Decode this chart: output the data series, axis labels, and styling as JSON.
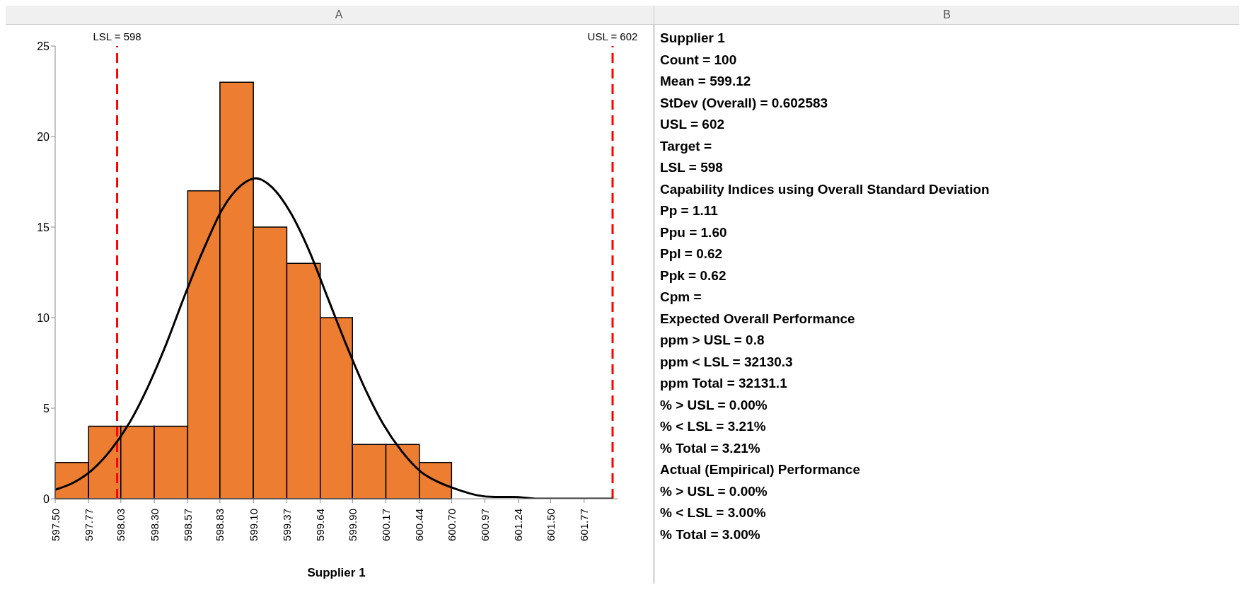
{
  "chart_data": {
    "type": "histogram",
    "xlabel": "Supplier 1",
    "series": [
      {
        "type": "histogram",
        "color": "#ed7d31",
        "bins": [
          597.5,
          597.77,
          598.03,
          598.3,
          598.57,
          598.83,
          599.1,
          599.37,
          599.64,
          599.9,
          600.17,
          600.44,
          600.7
        ],
        "values": [
          2,
          4,
          4,
          4,
          17,
          23,
          15,
          13,
          10,
          3,
          3,
          2
        ]
      },
      {
        "type": "line",
        "color": "#000000",
        "x": [
          597.5,
          597.65,
          597.8,
          597.95,
          598.1,
          598.25,
          598.4,
          598.55,
          598.7,
          598.85,
          599.0,
          599.12,
          599.25,
          599.4,
          599.55,
          599.7,
          599.85,
          600.0,
          600.15,
          600.3,
          600.45,
          600.6,
          600.75,
          600.9,
          601.05,
          601.2,
          601.4,
          601.6,
          601.8,
          602.0
        ],
        "values": [
          0.5,
          0.9,
          1.6,
          2.7,
          4.2,
          6.2,
          8.6,
          11.3,
          13.8,
          16.0,
          17.3,
          17.7,
          17.2,
          15.8,
          13.7,
          11.1,
          8.5,
          6.1,
          4.1,
          2.6,
          1.5,
          0.9,
          0.5,
          0.2,
          0.1,
          0.1,
          0,
          0,
          0,
          0
        ]
      }
    ],
    "xlim": [
      597.5,
      602.04
    ],
    "xticks": [
      {
        "value": 597.5,
        "label": "597.50"
      },
      597.77,
      598.03,
      {
        "value": 598.3,
        "label": "598.30"
      },
      598.57,
      598.83,
      {
        "value": 599.1,
        "label": "599.10"
      },
      599.37,
      599.64,
      {
        "value": 599.9,
        "label": "599.90"
      },
      600.17,
      600.44,
      {
        "value": 600.7,
        "label": "600.70"
      },
      600.97,
      601.24,
      {
        "value": 601.5,
        "label": "601.50"
      },
      601.77
    ],
    "ylim": [
      0,
      25
    ],
    "yticks": [
      0,
      5,
      10,
      15,
      20,
      25
    ],
    "ref_lines": [
      {
        "axis": "x",
        "value": 598,
        "label": "LSL = 598",
        "color": "#ff0000",
        "line_style": "dashed"
      },
      {
        "axis": "x",
        "value": 602,
        "label": "USL = 602",
        "color": "#ff0000",
        "line_style": "dashed"
      }
    ],
    "annotations": [
      "A",
      "B",
      "Supplier 1",
      "Count = 100",
      "Mean = 599.12",
      "StDev (Overall) = 0.602583",
      "USL = 602",
      "Target =",
      "LSL = 598",
      "Capability Indices using Overall Standard Deviation",
      "Pp = 1.11",
      "Ppu = 1.60",
      "Ppl = 0.62",
      "Ppk = 0.62",
      "Cpm =",
      "Expected Overall Performance",
      "ppm > USL = 0.8",
      "ppm < LSL = 32130.3",
      "ppm Total = 32131.1",
      "% > USL = 0.00%",
      "% < LSL = 3.21%",
      "% Total = 3.21%",
      "Actual (Empirical) Performance",
      "% > USL = 0.00%",
      "% < LSL = 3.00%",
      "% Total = 3.00%"
    ]
  }
}
